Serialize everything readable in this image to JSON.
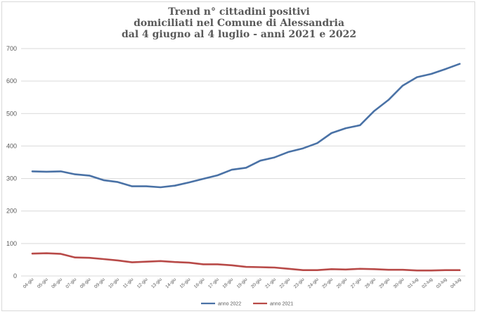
{
  "chart_data": {
    "type": "line",
    "title_lines": [
      "Trend n° cittadini positivi",
      "domiciliati nel Comune di Alessandria",
      "dal 4 giugno al 4 luglio - anni 2021 e 2022"
    ],
    "categories": [
      "04-giu",
      "05-giu",
      "06-giu",
      "07-giu",
      "08-giu",
      "09-giu",
      "10-giu",
      "11-giu",
      "12-giu",
      "13-giu",
      "14-giu",
      "15-giu",
      "16-giu",
      "17-giu",
      "18-giu",
      "19-giu",
      "20-giu",
      "21-giu",
      "22-giu",
      "23-giu",
      "24-giu",
      "25-giu",
      "26-giu",
      "27-giu",
      "28-giu",
      "29-giu",
      "30-giu",
      "01-lug",
      "02-lug",
      "03-lug",
      "04-lug"
    ],
    "series": [
      {
        "name": "anno 2022",
        "color": "#4a72a6",
        "values": [
          322,
          321,
          322,
          313,
          309,
          295,
          289,
          276,
          276,
          273,
          278,
          288,
          299,
          310,
          327,
          333,
          355,
          365,
          382,
          393,
          409,
          440,
          455,
          464,
          508,
          542,
          586,
          612,
          622,
          637,
          653
        ]
      },
      {
        "name": "anno 2021",
        "color": "#b84a48",
        "values": [
          69,
          70,
          68,
          57,
          56,
          52,
          48,
          42,
          44,
          46,
          43,
          41,
          36,
          36,
          33,
          28,
          27,
          26,
          22,
          18,
          18,
          21,
          20,
          22,
          21,
          19,
          19,
          17,
          17,
          18,
          18
        ]
      }
    ],
    "y_ticks": [
      "0",
      "100",
      "200",
      "300",
      "400",
      "500",
      "600",
      "700"
    ],
    "ylim": [
      0,
      700
    ],
    "grid": true,
    "legend_position": "bottom"
  }
}
